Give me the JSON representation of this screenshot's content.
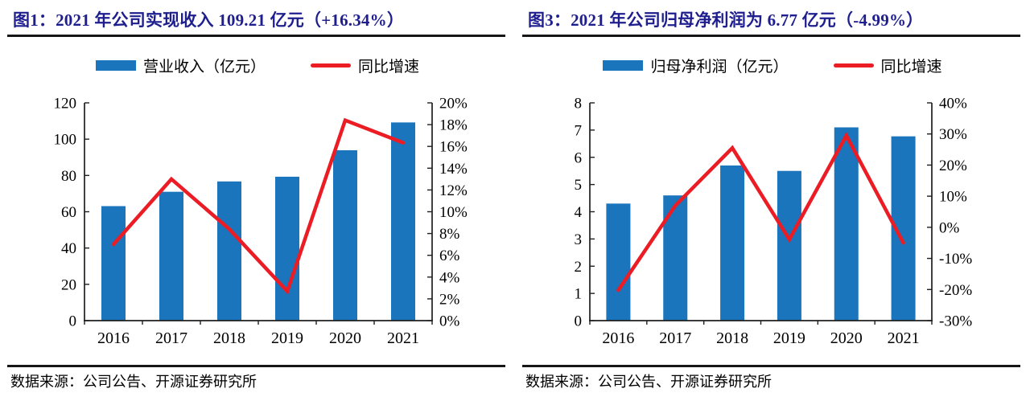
{
  "panels": [
    {
      "source": "数据来源：公司公告、开源证券研究所"
    },
    {
      "source": "数据来源：公司公告、开源证券研究所"
    }
  ],
  "colors": {
    "title_navy": "#1E1E8F",
    "bar_blue": "#1B75BC",
    "line_red": "#EC1C24",
    "rule_black": "#161616",
    "axis_black": "#1F1F1F"
  },
  "chart_data": [
    {
      "type": "bar",
      "subtype": "bar+line-combo",
      "title": "图1：2021 年公司实现收入 109.21 亿元（+16.34%）",
      "categories": [
        "2016",
        "2017",
        "2018",
        "2019",
        "2020",
        "2021"
      ],
      "series": [
        {
          "name": "营业收入（亿元）",
          "type": "bar",
          "axis": "left",
          "color": "#1B75BC",
          "values": [
            63.1,
            71.0,
            76.7,
            79.3,
            93.9,
            109.21
          ]
        },
        {
          "name": "同比增速",
          "type": "line",
          "axis": "right",
          "color": "#EC1C24",
          "unit": "%",
          "values": [
            7.0,
            13.0,
            8.4,
            2.7,
            18.4,
            16.34
          ]
        }
      ],
      "left_axis": {
        "min": 0,
        "max": 120,
        "step": 20,
        "suffix": ""
      },
      "right_axis": {
        "min": 0,
        "max": 20,
        "step": 2,
        "suffix": "%"
      },
      "grid": false,
      "legend_position": "top"
    },
    {
      "type": "bar",
      "subtype": "bar+line-combo",
      "title": "图3：2021 年公司归母净利润为 6.77 亿元（-4.99%）",
      "categories": [
        "2016",
        "2017",
        "2018",
        "2019",
        "2020",
        "2021"
      ],
      "series": [
        {
          "name": "归母净利润（亿元）",
          "type": "bar",
          "axis": "left",
          "color": "#1B75BC",
          "values": [
            4.3,
            4.6,
            5.7,
            5.5,
            7.1,
            6.77
          ]
        },
        {
          "name": "同比增速",
          "type": "line",
          "axis": "right",
          "color": "#EC1C24",
          "unit": "%",
          "values": [
            -20.2,
            7.0,
            25.5,
            -3.9,
            29.5,
            -4.99
          ]
        }
      ],
      "left_axis": {
        "min": 0,
        "max": 8,
        "step": 1,
        "suffix": ""
      },
      "right_axis": {
        "min": -30,
        "max": 40,
        "step": 10,
        "suffix": "%"
      },
      "grid": false,
      "legend_position": "top"
    }
  ]
}
